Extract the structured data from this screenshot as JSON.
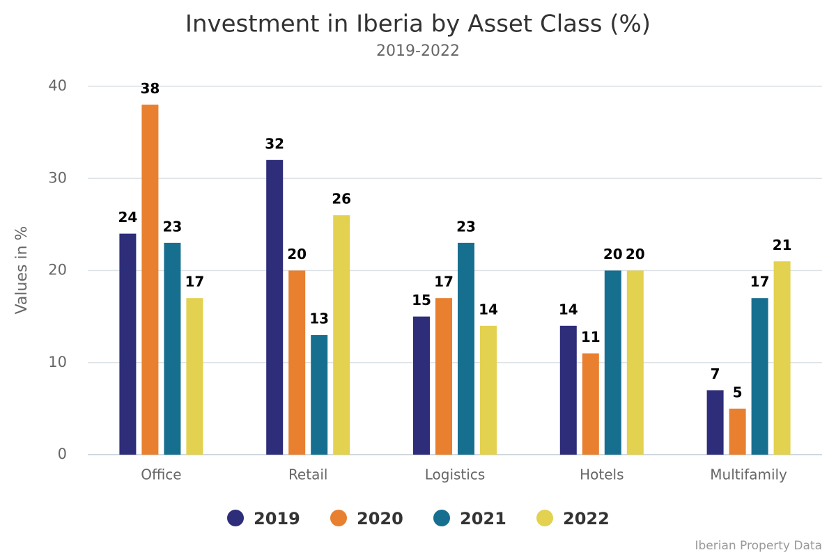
{
  "chart_data": {
    "type": "bar",
    "title": "Investment in Iberia by Asset Class (%)",
    "subtitle": "2019-2022",
    "y_label": "Values in %",
    "source": "Iberian Property Data",
    "categories": [
      "Office",
      "Retail",
      "Logistics",
      "Hotels",
      "Multifamily"
    ],
    "series": [
      {
        "name": "2019",
        "color": "#2d2d7a",
        "values": [
          24,
          32,
          15,
          14,
          7
        ]
      },
      {
        "name": "2020",
        "color": "#e8802f",
        "values": [
          38,
          20,
          17,
          11,
          5
        ]
      },
      {
        "name": "2021",
        "color": "#176f8f",
        "values": [
          23,
          13,
          23,
          20,
          17
        ]
      },
      {
        "name": "2022",
        "color": "#e3d150",
        "values": [
          17,
          26,
          14,
          20,
          21
        ]
      }
    ],
    "ylim": [
      0,
      40
    ],
    "yticks": [
      0,
      10,
      20,
      30,
      40
    ],
    "grid": true,
    "legend": "bottom"
  }
}
